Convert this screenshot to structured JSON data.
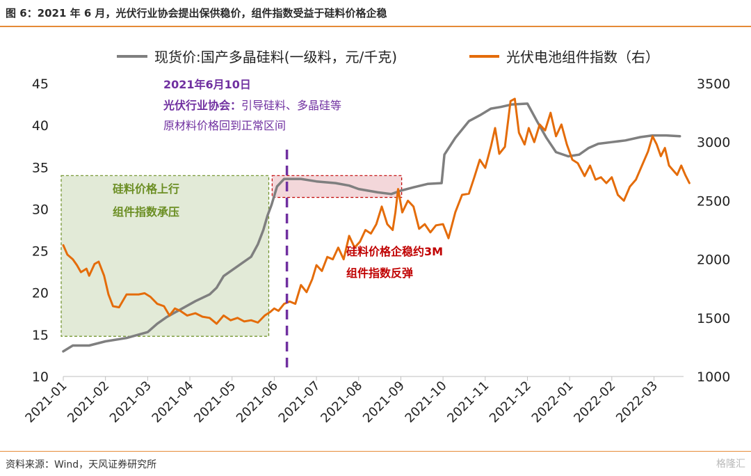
{
  "header": {
    "title": "图 6：2021 年 6 月，光伏行业协会提出保供稳价，组件指数受益于硅料价格企稳"
  },
  "footer": {
    "source": "资料来源：Wind，天风证券研究所",
    "watermark": "格隆汇"
  },
  "colors": {
    "accent": "#e58a36",
    "silicon": "#7f7f7f",
    "module": "#e46c0a",
    "purple": "#7030a0",
    "green": "#6b8e23",
    "red": "#c00000"
  },
  "chart_data": {
    "type": "line",
    "x_tick_labels": [
      "2021-01",
      "2021-02",
      "2021-03",
      "2021-04",
      "2021-05",
      "2021-06",
      "2021-07",
      "2021-08",
      "2021-09",
      "2021-10",
      "2021-11",
      "2021-12",
      "2022-01",
      "2022-02",
      "2022-03"
    ],
    "y_left": {
      "ticks": [
        10,
        15,
        20,
        25,
        30,
        35,
        40,
        45
      ],
      "ylim": [
        10,
        45
      ]
    },
    "y_right": {
      "ticks": [
        1000,
        1500,
        2000,
        2500,
        3000,
        3500
      ],
      "ylim": [
        1000,
        3500
      ]
    },
    "legend": {
      "placement": "top",
      "items": [
        "现货价:国产多晶硅料(一级料，元/千克)",
        "光伏电池组件指数（右）"
      ]
    },
    "series": [
      {
        "name": "现货价:国产多晶硅料(一级料，元/千克)",
        "axis": "left",
        "points": [
          [
            "2021-01-01",
            13.0
          ],
          [
            "2021-01-08",
            13.7
          ],
          [
            "2021-01-20",
            13.7
          ],
          [
            "2021-02-01",
            14.2
          ],
          [
            "2021-02-15",
            14.6
          ],
          [
            "2021-03-01",
            15.3
          ],
          [
            "2021-03-08",
            16.3
          ],
          [
            "2021-03-15",
            17.1
          ],
          [
            "2021-03-25",
            18.0
          ],
          [
            "2021-04-05",
            19.0
          ],
          [
            "2021-04-15",
            19.8
          ],
          [
            "2021-04-20",
            20.6
          ],
          [
            "2021-04-25",
            22.0
          ],
          [
            "2021-05-01",
            22.7
          ],
          [
            "2021-05-08",
            23.5
          ],
          [
            "2021-05-15",
            24.3
          ],
          [
            "2021-05-20",
            25.8
          ],
          [
            "2021-05-24",
            27.5
          ],
          [
            "2021-05-27",
            29.2
          ],
          [
            "2021-05-30",
            30.5
          ],
          [
            "2021-06-03",
            32.7
          ],
          [
            "2021-06-08",
            33.6
          ],
          [
            "2021-06-20",
            33.6
          ],
          [
            "2021-07-01",
            33.3
          ],
          [
            "2021-07-15",
            33.1
          ],
          [
            "2021-07-25",
            32.8
          ],
          [
            "2021-08-01",
            32.4
          ],
          [
            "2021-08-15",
            32.0
          ],
          [
            "2021-08-25",
            31.8
          ],
          [
            "2021-09-01",
            32.2
          ],
          [
            "2021-09-10",
            32.6
          ],
          [
            "2021-09-20",
            33.0
          ],
          [
            "2021-09-30",
            33.1
          ],
          [
            "2021-10-02",
            36.5
          ],
          [
            "2021-10-10",
            38.5
          ],
          [
            "2021-10-20",
            40.5
          ],
          [
            "2021-10-28",
            41.2
          ],
          [
            "2021-11-05",
            42.0
          ],
          [
            "2021-11-12",
            42.2
          ],
          [
            "2021-11-20",
            42.5
          ],
          [
            "2021-12-01",
            42.6
          ],
          [
            "2021-12-08",
            40.5
          ],
          [
            "2021-12-15",
            38.5
          ],
          [
            "2021-12-22",
            36.8
          ],
          [
            "2021-12-31",
            36.3
          ],
          [
            "2022-01-08",
            36.5
          ],
          [
            "2022-01-15",
            37.3
          ],
          [
            "2022-01-22",
            37.8
          ],
          [
            "2022-02-01",
            38.0
          ],
          [
            "2022-02-10",
            38.2
          ],
          [
            "2022-02-20",
            38.6
          ],
          [
            "2022-02-28",
            38.8
          ],
          [
            "2022-03-10",
            38.8
          ],
          [
            "2022-03-20",
            38.7
          ]
        ]
      },
      {
        "name": "光伏电池组件指数（右）",
        "axis": "right",
        "points": [
          [
            "2021-01-01",
            2120
          ],
          [
            "2021-01-04",
            2040
          ],
          [
            "2021-01-08",
            2000
          ],
          [
            "2021-01-11",
            1950
          ],
          [
            "2021-01-14",
            1890
          ],
          [
            "2021-01-18",
            1920
          ],
          [
            "2021-01-20",
            1860
          ],
          [
            "2021-01-24",
            1960
          ],
          [
            "2021-01-27",
            1980
          ],
          [
            "2021-01-31",
            1860
          ],
          [
            "2021-02-03",
            1700
          ],
          [
            "2021-02-06",
            1600
          ],
          [
            "2021-02-10",
            1590
          ],
          [
            "2021-02-15",
            1700
          ],
          [
            "2021-02-23",
            1700
          ],
          [
            "2021-02-27",
            1710
          ],
          [
            "2021-03-03",
            1680
          ],
          [
            "2021-03-08",
            1620
          ],
          [
            "2021-03-13",
            1600
          ],
          [
            "2021-03-17",
            1520
          ],
          [
            "2021-03-21",
            1580
          ],
          [
            "2021-03-25",
            1560
          ],
          [
            "2021-03-30",
            1520
          ],
          [
            "2021-04-05",
            1540
          ],
          [
            "2021-04-10",
            1510
          ],
          [
            "2021-04-15",
            1500
          ],
          [
            "2021-04-20",
            1450
          ],
          [
            "2021-04-25",
            1520
          ],
          [
            "2021-04-30",
            1480
          ],
          [
            "2021-05-05",
            1500
          ],
          [
            "2021-05-10",
            1470
          ],
          [
            "2021-05-15",
            1480
          ],
          [
            "2021-05-20",
            1460
          ],
          [
            "2021-05-25",
            1520
          ],
          [
            "2021-05-29",
            1550
          ],
          [
            "2021-06-01",
            1580
          ],
          [
            "2021-06-04",
            1560
          ],
          [
            "2021-06-08",
            1620
          ],
          [
            "2021-06-12",
            1640
          ],
          [
            "2021-06-16",
            1620
          ],
          [
            "2021-06-20",
            1780
          ],
          [
            "2021-06-24",
            1720
          ],
          [
            "2021-06-28",
            1830
          ],
          [
            "2021-07-01",
            1950
          ],
          [
            "2021-07-05",
            1900
          ],
          [
            "2021-07-09",
            2020
          ],
          [
            "2021-07-13",
            2000
          ],
          [
            "2021-07-17",
            2100
          ],
          [
            "2021-07-21",
            2000
          ],
          [
            "2021-07-25",
            2200
          ],
          [
            "2021-07-29",
            2100
          ],
          [
            "2021-08-02",
            2150
          ],
          [
            "2021-08-06",
            2250
          ],
          [
            "2021-08-10",
            2220
          ],
          [
            "2021-08-14",
            2300
          ],
          [
            "2021-08-18",
            2450
          ],
          [
            "2021-08-22",
            2300
          ],
          [
            "2021-08-26",
            2250
          ],
          [
            "2021-08-28",
            2400
          ],
          [
            "2021-08-30",
            2600
          ],
          [
            "2021-09-02",
            2400
          ],
          [
            "2021-09-06",
            2500
          ],
          [
            "2021-09-10",
            2450
          ],
          [
            "2021-09-14",
            2260
          ],
          [
            "2021-09-18",
            2300
          ],
          [
            "2021-09-22",
            2230
          ],
          [
            "2021-09-26",
            2290
          ],
          [
            "2021-10-01",
            2300
          ],
          [
            "2021-10-05",
            2180
          ],
          [
            "2021-10-10",
            2400
          ],
          [
            "2021-10-15",
            2550
          ],
          [
            "2021-10-20",
            2560
          ],
          [
            "2021-10-24",
            2700
          ],
          [
            "2021-10-28",
            2850
          ],
          [
            "2021-11-01",
            2780
          ],
          [
            "2021-11-05",
            2960
          ],
          [
            "2021-11-08",
            3120
          ],
          [
            "2021-11-11",
            2900
          ],
          [
            "2021-11-15",
            2960
          ],
          [
            "2021-11-19",
            3350
          ],
          [
            "2021-11-22",
            3370
          ],
          [
            "2021-11-25",
            3080
          ],
          [
            "2021-11-29",
            2980
          ],
          [
            "2021-12-02",
            3120
          ],
          [
            "2021-12-06",
            3000
          ],
          [
            "2021-12-10",
            3150
          ],
          [
            "2021-12-14",
            3100
          ],
          [
            "2021-12-18",
            3250
          ],
          [
            "2021-12-22",
            3050
          ],
          [
            "2021-12-26",
            3150
          ],
          [
            "2021-12-30",
            2980
          ],
          [
            "2022-01-03",
            2850
          ],
          [
            "2022-01-07",
            2820
          ],
          [
            "2022-01-12",
            2710
          ],
          [
            "2022-01-16",
            2800
          ],
          [
            "2022-01-20",
            2680
          ],
          [
            "2022-01-24",
            2700
          ],
          [
            "2022-01-28",
            2650
          ],
          [
            "2022-02-01",
            2700
          ],
          [
            "2022-02-05",
            2550
          ],
          [
            "2022-02-09",
            2500
          ],
          [
            "2022-02-13",
            2620
          ],
          [
            "2022-02-17",
            2680
          ],
          [
            "2022-02-21",
            2800
          ],
          [
            "2022-02-25",
            2920
          ],
          [
            "2022-02-28",
            3050
          ],
          [
            "2022-03-03",
            2980
          ],
          [
            "2022-03-06",
            2880
          ],
          [
            "2022-03-09",
            2950
          ],
          [
            "2022-03-12",
            2800
          ],
          [
            "2022-03-15",
            2760
          ],
          [
            "2022-03-18",
            2720
          ],
          [
            "2022-03-21",
            2800
          ],
          [
            "2022-03-24",
            2720
          ],
          [
            "2022-03-27",
            2650
          ]
        ]
      }
    ],
    "annotations": {
      "event": {
        "date": "2021-06-10",
        "lines": [
          "2021年6月10日",
          "光伏行业协会：引导硅料、多晶硅等",
          "原材料价格回到正常区间"
        ]
      },
      "green_box": {
        "lines": [
          "硅料价格上行",
          "组件指数承压"
        ]
      },
      "red_box": {
        "lines": [
          "硅料价格企稳约3M",
          "组件指数反弹"
        ]
      }
    }
  }
}
